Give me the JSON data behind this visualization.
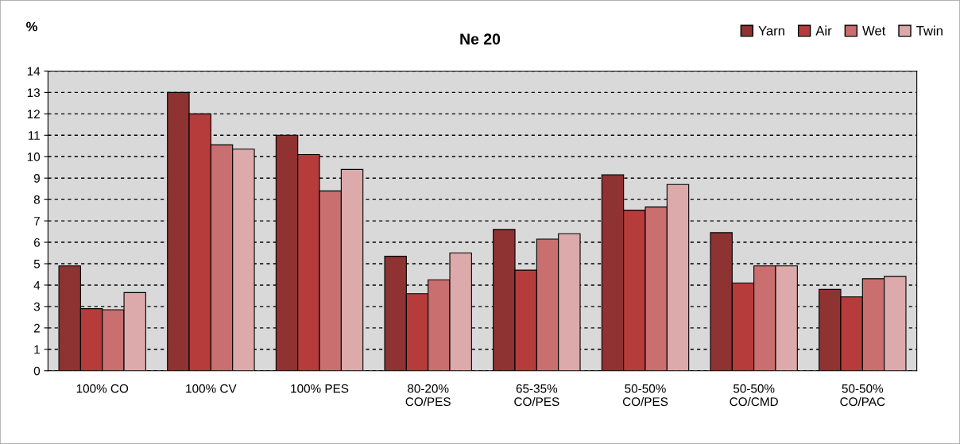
{
  "chart_data": {
    "type": "bar",
    "title": "Ne 20",
    "ylabel": "%",
    "categories": [
      "100% CO",
      "100% CV",
      "100% PES",
      "80-20%\nCO/PES",
      "65-35%\nCO/PES",
      "50-50%\nCO/PES",
      "50-50%\nCO/CMD",
      "50-50%\nCO/PAC"
    ],
    "series": [
      {
        "name": "Yarn",
        "color": "#8e3232",
        "values": [
          4.9,
          13.0,
          11.0,
          5.35,
          6.6,
          9.15,
          6.45,
          3.8
        ]
      },
      {
        "name": "Air",
        "color": "#b63c3c",
        "values": [
          2.9,
          12.0,
          10.1,
          3.6,
          4.7,
          7.5,
          4.1,
          3.45
        ]
      },
      {
        "name": "Wet",
        "color": "#c96f6f",
        "values": [
          2.85,
          10.55,
          8.4,
          4.25,
          6.15,
          7.65,
          4.9,
          4.3
        ]
      },
      {
        "name": "Twin",
        "color": "#dcaaaa",
        "values": [
          3.65,
          10.35,
          9.4,
          5.5,
          6.4,
          8.7,
          4.9,
          4.4
        ]
      }
    ],
    "ylim": [
      0,
      14
    ],
    "yticks": [
      0,
      1,
      2,
      3,
      4,
      5,
      6,
      7,
      8,
      9,
      10,
      11,
      12,
      13,
      14
    ],
    "grid": "y",
    "legend": "top right"
  }
}
